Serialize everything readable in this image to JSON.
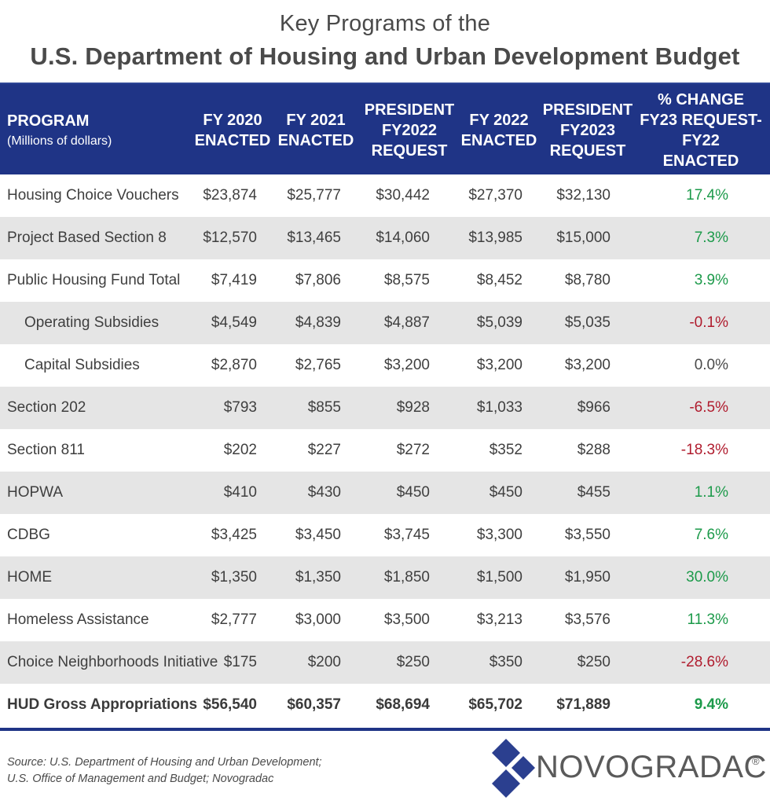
{
  "title": {
    "line1": "Key Programs of the",
    "line2": "U.S. Department of Housing and Urban Development Budget"
  },
  "table": {
    "headers": {
      "program": "PROGRAM",
      "program_sub": "(Millions of dollars)",
      "fy2020": [
        "FY 2020",
        "ENACTED"
      ],
      "fy2021": [
        "FY 2021",
        "ENACTED"
      ],
      "pres2022": [
        "PRESIDENT",
        "FY2022",
        "REQUEST"
      ],
      "fy2022": [
        "FY 2022",
        "ENACTED"
      ],
      "pres2023": [
        "PRESIDENT",
        "FY2023",
        "REQUEST"
      ],
      "pct": [
        "% CHANGE",
        "FY23 REQUEST-",
        "FY22",
        "ENACTED"
      ]
    },
    "rows": [
      {
        "program": "Housing Choice Vouchers",
        "fy2020": "$23,874",
        "fy2021": "$25,777",
        "pres2022": "$30,442",
        "fy2022": "$27,370",
        "pres2023": "$32,130",
        "pct": "17.4%"
      },
      {
        "program": "Project Based Section 8",
        "fy2020": "$12,570",
        "fy2021": "$13,465",
        "pres2022": "$14,060",
        "fy2022": "$13,985",
        "pres2023": "$15,000",
        "pct": "7.3%"
      },
      {
        "program": "Public Housing Fund Total",
        "fy2020": "$7,419",
        "fy2021": "$7,806",
        "pres2022": "$8,575",
        "fy2022": "$8,452",
        "pres2023": "$8,780",
        "pct": "3.9%"
      },
      {
        "program": "Operating Subsidies",
        "fy2020": "$4,549",
        "fy2021": "$4,839",
        "pres2022": "$4,887",
        "fy2022": "$5,039",
        "pres2023": "$5,035",
        "pct": "-0.1%"
      },
      {
        "program": "Capital Subsidies",
        "fy2020": "$2,870",
        "fy2021": "$2,765",
        "pres2022": "$3,200",
        "fy2022": "$3,200",
        "pres2023": "$3,200",
        "pct": "0.0%"
      },
      {
        "program": "Section 202",
        "fy2020": "$793",
        "fy2021": "$855",
        "pres2022": "$928",
        "fy2022": "$1,033",
        "pres2023": "$966",
        "pct": "-6.5%"
      },
      {
        "program": "Section 811",
        "fy2020": "$202",
        "fy2021": "$227",
        "pres2022": "$272",
        "fy2022": "$352",
        "pres2023": "$288",
        "pct": "-18.3%"
      },
      {
        "program": "HOPWA",
        "fy2020": "$410",
        "fy2021": "$430",
        "pres2022": "$450",
        "fy2022": "$450",
        "pres2023": "$455",
        "pct": "1.1%"
      },
      {
        "program": "CDBG",
        "fy2020": "$3,425",
        "fy2021": "$3,450",
        "pres2022": "$3,745",
        "fy2022": "$3,300",
        "pres2023": "$3,550",
        "pct": "7.6%"
      },
      {
        "program": "HOME",
        "fy2020": "$1,350",
        "fy2021": "$1,350",
        "pres2022": "$1,850",
        "fy2022": "$1,500",
        "pres2023": "$1,950",
        "pct": "30.0%"
      },
      {
        "program": "Homeless Assistance",
        "fy2020": "$2,777",
        "fy2021": "$3,000",
        "pres2022": "$3,500",
        "fy2022": "$3,213",
        "pres2023": "$3,576",
        "pct": "11.3%"
      },
      {
        "program": "Choice Neighborhoods Initiative",
        "fy2020": "$175",
        "fy2021": "$200",
        "pres2022": "$250",
        "fy2022": "$350",
        "pres2023": "$250",
        "pct": "-28.6%"
      },
      {
        "program": "HUD Gross Appropriations",
        "fy2020": "$56,540",
        "fy2021": "$60,357",
        "pres2022": "$68,694",
        "fy2022": "$65,702",
        "pres2023": "$71,889",
        "pct": "9.4%"
      }
    ]
  },
  "colors": {
    "header_bg": "#1f3486",
    "positive": "#1c9a4a",
    "negative": "#b01c2e",
    "alt_row": "#e5e5e5"
  },
  "footer": {
    "source_line1": "Source: U.S. Department of Housing and Urban Development;",
    "source_line2": "U.S. Office of Management and Budget; Novogradac",
    "logo_text": "NOVOGRADAC",
    "logo_reg": "®"
  }
}
